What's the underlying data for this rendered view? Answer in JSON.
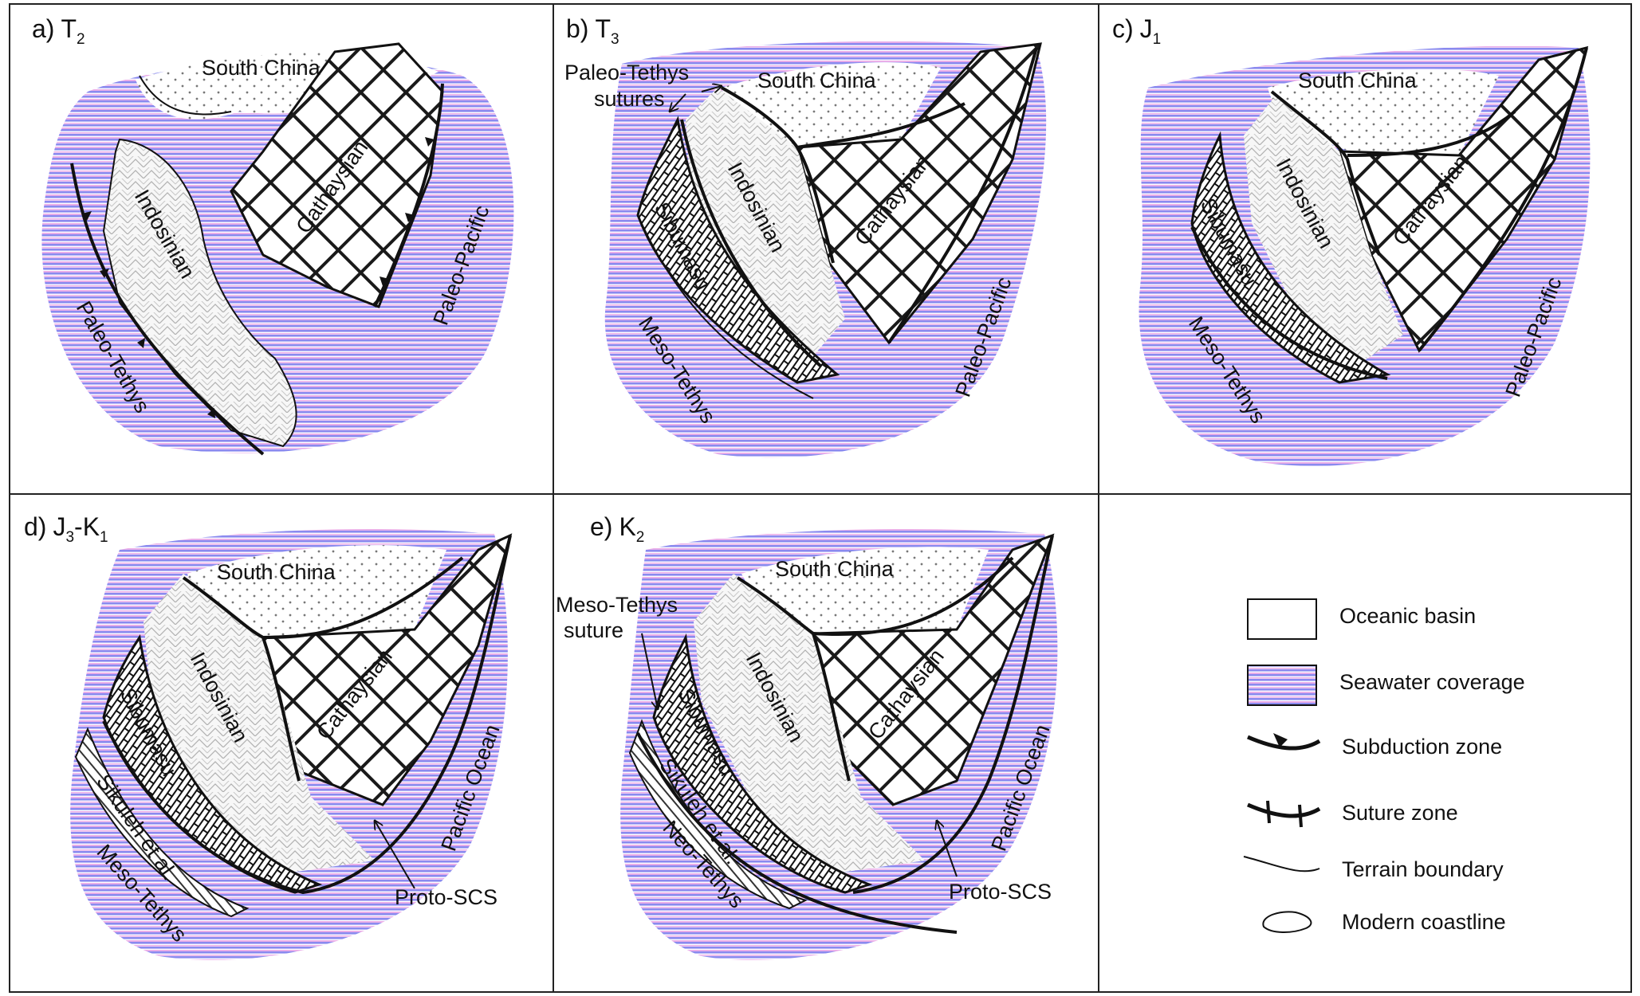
{
  "panels": [
    {
      "id": "a",
      "letter": "a)",
      "period": "T",
      "sub": "2",
      "labels": {
        "south_china": "South China",
        "cathaysian": "Cathaysian",
        "indosinian": "Indosinian",
        "paleo_tethys": "Paleo-Tethys",
        "paleo_pacific": "Paleo-Pacific"
      }
    },
    {
      "id": "b",
      "letter": "b)",
      "period": "T",
      "sub": "3",
      "labels": {
        "sutures_1": "Paleo-Tethys",
        "sutures_2": "sutures",
        "south_china": "South China",
        "cathaysian": "Cathaysian",
        "indosinian": "Indosinian",
        "sibumasu": "Sibumasu",
        "meso_tethys": "Meso-Tethys",
        "paleo_pacific": "Paleo-Pacific"
      }
    },
    {
      "id": "c",
      "letter": "c)",
      "period": "J",
      "sub": "1",
      "labels": {
        "south_china": "South China",
        "cathaysian": "Cathaysian",
        "indosinian": "Indosinian",
        "sibumasu": "Sibumasu",
        "meso_tethys": "Meso-Tethys",
        "paleo_pacific": "Paleo-Pacific"
      }
    },
    {
      "id": "d",
      "letter": "d)",
      "period": "J",
      "sub": "3",
      "period2": "-K",
      "sub2": "1",
      "labels": {
        "south_china": "South China",
        "cathaysian": "Cathaysian",
        "indosinian": "Indosinian",
        "sibumasu": "Sibumasu",
        "sikuleh": "Sikuleh et al.",
        "meso_tethys": "Meso-Tethys",
        "pacific_ocean": "Pacific Ocean",
        "proto_scs": "Proto-SCS"
      }
    },
    {
      "id": "e",
      "letter": "e)",
      "period": "K",
      "sub": "2",
      "labels": {
        "suture_1": "Meso-Tethys",
        "suture_2": "suture",
        "south_china": "South China",
        "cathaysian": "Cathaysian",
        "indosinian": "Indosinian",
        "sibumasu": "Sibumasu",
        "sikuleh": "Sikuleh et al.",
        "neo_tethys": "Neo-Tethys",
        "pacific_ocean": "Pacific Ocean",
        "proto_scs": "Proto-SCS"
      }
    }
  ],
  "legend": [
    {
      "key": "oceanic_basin",
      "label": "Oceanic basin"
    },
    {
      "key": "seawater",
      "label": "Seawater coverage"
    },
    {
      "key": "subduction",
      "label": "Subduction zone"
    },
    {
      "key": "suture",
      "label": "Suture zone"
    },
    {
      "key": "terrain",
      "label": "Terrain boundary"
    },
    {
      "key": "coastline",
      "label": "Modern coastline"
    }
  ],
  "colors": {
    "sea_blue": "#8888ee",
    "sea_pink": "#e6a6e6",
    "line": "#111111",
    "block_grey": "#b8b8b8",
    "dots": "#777777"
  }
}
